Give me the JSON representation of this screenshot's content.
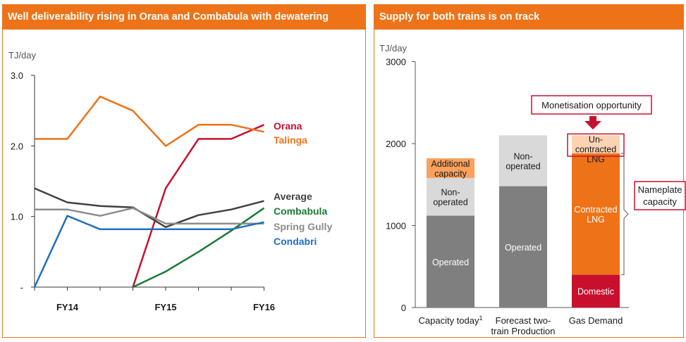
{
  "colors": {
    "accent": "#ee7318",
    "orana": "#c8102e",
    "talinga": "#ee7318",
    "average": "#404040",
    "combabula": "#1a7a35",
    "spring_gully": "#8c8c8c",
    "condabri": "#1f6fbf",
    "operated": "#7f7f7f",
    "non_operated": "#d9d9d9",
    "additional": "#f9a15d",
    "contracted": "#ee7318",
    "uncontracted": "#fbd3b3",
    "domestic": "#c8102e"
  },
  "chart_data": [
    {
      "type": "line",
      "title": "Well deliverability rising in Orana and Combabula with dewatering",
      "ylabel": "TJ/day",
      "ylim": [
        0,
        3
      ],
      "yticks": [
        "-",
        "1.0",
        "2.0",
        "3.0"
      ],
      "ytick_values": [
        0,
        1,
        2,
        3
      ],
      "x": [
        0,
        1,
        2,
        3,
        4,
        5,
        6,
        7
      ],
      "xticks": [
        {
          "x": 1,
          "label": "FY14"
        },
        {
          "x": 4,
          "label": "FY15"
        },
        {
          "x": 7,
          "label": "FY16"
        }
      ],
      "grid": false,
      "series": [
        {
          "name": "Orana",
          "color": "#c8102e",
          "points": [
            [
              3,
              0
            ],
            [
              4,
              1.4
            ],
            [
              5,
              2.1
            ],
            [
              6,
              2.1
            ],
            [
              7,
              2.3
            ]
          ]
        },
        {
          "name": "Talinga",
          "color": "#ee7318",
          "points": [
            [
              0,
              2.1
            ],
            [
              1,
              2.1
            ],
            [
              2,
              2.7
            ],
            [
              3,
              2.5
            ],
            [
              4,
              2.0
            ],
            [
              5,
              2.3
            ],
            [
              6,
              2.3
            ],
            [
              7,
              2.2
            ]
          ]
        },
        {
          "name": "Average",
          "color": "#404040",
          "points": [
            [
              0,
              1.4
            ],
            [
              1,
              1.2
            ],
            [
              2,
              1.15
            ],
            [
              3,
              1.13
            ],
            [
              4,
              0.85
            ],
            [
              5,
              1.02
            ],
            [
              6,
              1.1
            ],
            [
              7,
              1.22
            ]
          ]
        },
        {
          "name": "Combabula",
          "color": "#1a7a35",
          "points": [
            [
              3,
              0
            ],
            [
              4,
              0.22
            ],
            [
              5,
              0.5
            ],
            [
              6,
              0.8
            ],
            [
              7,
              1.12
            ]
          ]
        },
        {
          "name": "Spring Gully",
          "color": "#8c8c8c",
          "points": [
            [
              0,
              1.1
            ],
            [
              1,
              1.1
            ],
            [
              2,
              1.01
            ],
            [
              3,
              1.12
            ],
            [
              4,
              0.9
            ],
            [
              5,
              0.9
            ],
            [
              6,
              0.9
            ],
            [
              7,
              0.9
            ]
          ]
        },
        {
          "name": "Condabri",
          "color": "#1f6fbf",
          "points": [
            [
              0,
              0
            ],
            [
              1,
              1.01
            ],
            [
              2,
              0.82
            ],
            [
              3,
              0.82
            ],
            [
              4,
              0.82
            ],
            [
              5,
              0.82
            ],
            [
              6,
              0.82
            ],
            [
              7,
              0.92
            ]
          ]
        }
      ],
      "legend": "right"
    },
    {
      "type": "bar",
      "stacked": true,
      "title": "Supply for both trains is on track",
      "ylabel": "TJ/day",
      "ylim": [
        0,
        3000
      ],
      "yticks": [
        "0",
        "1000",
        "2000",
        "3000"
      ],
      "ytick_values": [
        0,
        1000,
        2000,
        3000
      ],
      "categories": [
        {
          "label": "Capacity today",
          "sup": "1"
        },
        {
          "label": "Forecast two-",
          "label2": "train Production"
        },
        {
          "label": "Gas Demand"
        }
      ],
      "bars": [
        {
          "segments": [
            {
              "name": "Operated",
              "value": 1120,
              "color": "#7f7f7f",
              "label": "Operated",
              "label_color": "#ffffff"
            },
            {
              "name": "Non-operated",
              "value": 460,
              "color": "#d9d9d9",
              "label": "Non-",
              "label2": "operated",
              "label_color": "#1a1a1a"
            },
            {
              "name": "Additional capacity",
              "value": 240,
              "color": "#f9a15d",
              "label": "Additional",
              "label2": "capacity",
              "label_color": "#1a1a1a"
            }
          ]
        },
        {
          "segments": [
            {
              "name": "Operated",
              "value": 1480,
              "color": "#7f7f7f",
              "label": "Operated",
              "label_color": "#ffffff"
            },
            {
              "name": "Non-operated",
              "value": 620,
              "color": "#d9d9d9",
              "label": "Non-",
              "label2": "operated",
              "label_color": "#1a1a1a"
            }
          ]
        },
        {
          "segments": [
            {
              "name": "Domestic",
              "value": 400,
              "color": "#c8102e",
              "label": "Domestic",
              "label_color": "#ffffff"
            },
            {
              "name": "Contracted LNG",
              "value": 1480,
              "color": "#ee7318",
              "label": "Contracted",
              "label2": "LNG",
              "label_color": "#ffffff"
            },
            {
              "name": "Uncontracted LNG",
              "value": 220,
              "color": "#fbd3b3",
              "label": "Un-",
              "label2": "contracted",
              "label3": "LNG",
              "label_color": "#1a1a1a"
            }
          ]
        }
      ],
      "annotations": {
        "monetisation": "Monetisation opportunity",
        "nameplate": [
          "Nameplate",
          "capacity"
        ],
        "nameplate_range": [
          400,
          1880
        ]
      }
    }
  ]
}
